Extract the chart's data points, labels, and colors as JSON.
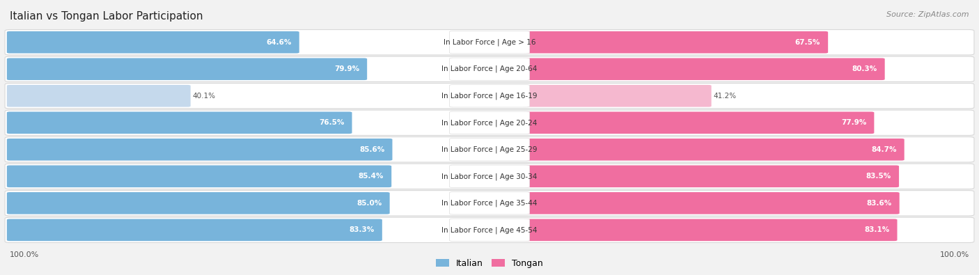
{
  "title": "Italian vs Tongan Labor Participation",
  "source": "Source: ZipAtlas.com",
  "categories": [
    "In Labor Force | Age > 16",
    "In Labor Force | Age 20-64",
    "In Labor Force | Age 16-19",
    "In Labor Force | Age 20-24",
    "In Labor Force | Age 25-29",
    "In Labor Force | Age 30-34",
    "In Labor Force | Age 35-44",
    "In Labor Force | Age 45-54"
  ],
  "italian_values": [
    64.6,
    79.9,
    40.1,
    76.5,
    85.6,
    85.4,
    85.0,
    83.3
  ],
  "tongan_values": [
    67.5,
    80.3,
    41.2,
    77.9,
    84.7,
    83.5,
    83.6,
    83.1
  ],
  "italian_color": "#78b4db",
  "italian_color_light": "#c5d9ec",
  "tongan_color": "#f06ea0",
  "tongan_color_light": "#f5b8cf",
  "bg_color": "#f2f2f2",
  "row_bg": "#ffffff",
  "row_border": "#d8d8d8",
  "center_label_bg": "#ffffff",
  "center_label_border": "#dddddd",
  "title_color": "#222222",
  "source_color": "#888888",
  "value_label_color_inside": "#ffffff",
  "value_label_color_outside": "#555555",
  "legend_italian": "Italian",
  "legend_tongan": "Tongan",
  "legend_color_italian": "#78b4db",
  "legend_color_tongan": "#f06ea0",
  "axis_label_color": "#555555"
}
